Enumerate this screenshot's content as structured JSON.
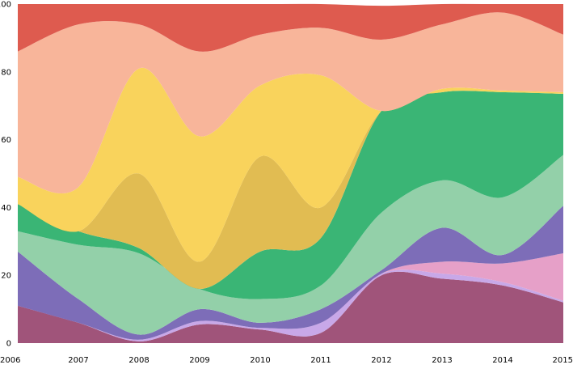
{
  "chart_data": {
    "type": "area",
    "stacked": true,
    "smooth": true,
    "x": [
      "2006",
      "2007",
      "2008",
      "2009",
      "2010",
      "2011",
      "2012",
      "2013",
      "2014",
      "2015"
    ],
    "ylim": [
      0,
      100
    ],
    "yticks": [
      "0",
      "20",
      "40",
      "60",
      "80",
      "100"
    ],
    "grid": false,
    "legend": "none",
    "series": [
      {
        "color": "#a0547a",
        "values": [
          11,
          6,
          0.5,
          5.5,
          4,
          3,
          20,
          19,
          17,
          12
        ]
      },
      {
        "color": "#c8a8e8",
        "values": [
          0,
          0,
          0.5,
          1,
          0.5,
          3,
          0.5,
          1.5,
          1,
          0.5
        ]
      },
      {
        "color": "#e6a0c8",
        "values": [
          0,
          0,
          0,
          0,
          0,
          0,
          0,
          3.5,
          5.5,
          14
        ]
      },
      {
        "color": "#7d6db8",
        "values": [
          16,
          7,
          1.5,
          3.5,
          1.5,
          4,
          1,
          10,
          2.5,
          14
        ]
      },
      {
        "color": "#93d0a9",
        "values": [
          6,
          16,
          24,
          6,
          7,
          7,
          17,
          14,
          17,
          15
        ]
      },
      {
        "color": "#3ab575",
        "values": [
          8,
          4,
          1.5,
          0,
          14,
          14,
          30,
          26,
          31,
          18
        ]
      },
      {
        "color": "#e1bc52",
        "values": [
          0,
          0,
          22,
          8,
          28,
          9,
          0,
          0,
          0,
          0
        ]
      },
      {
        "color": "#f9d35c",
        "values": [
          8,
          13,
          31,
          37,
          21,
          39,
          0,
          1,
          0.5,
          0.5
        ]
      },
      {
        "color": "#f8b59a",
        "values": [
          37,
          48,
          13,
          25,
          15,
          14,
          21,
          19,
          23,
          17
        ]
      },
      {
        "color": "#de5b4f",
        "values": [
          14,
          6,
          6,
          14,
          9,
          7,
          10,
          6,
          2.5,
          9
        ]
      }
    ]
  }
}
